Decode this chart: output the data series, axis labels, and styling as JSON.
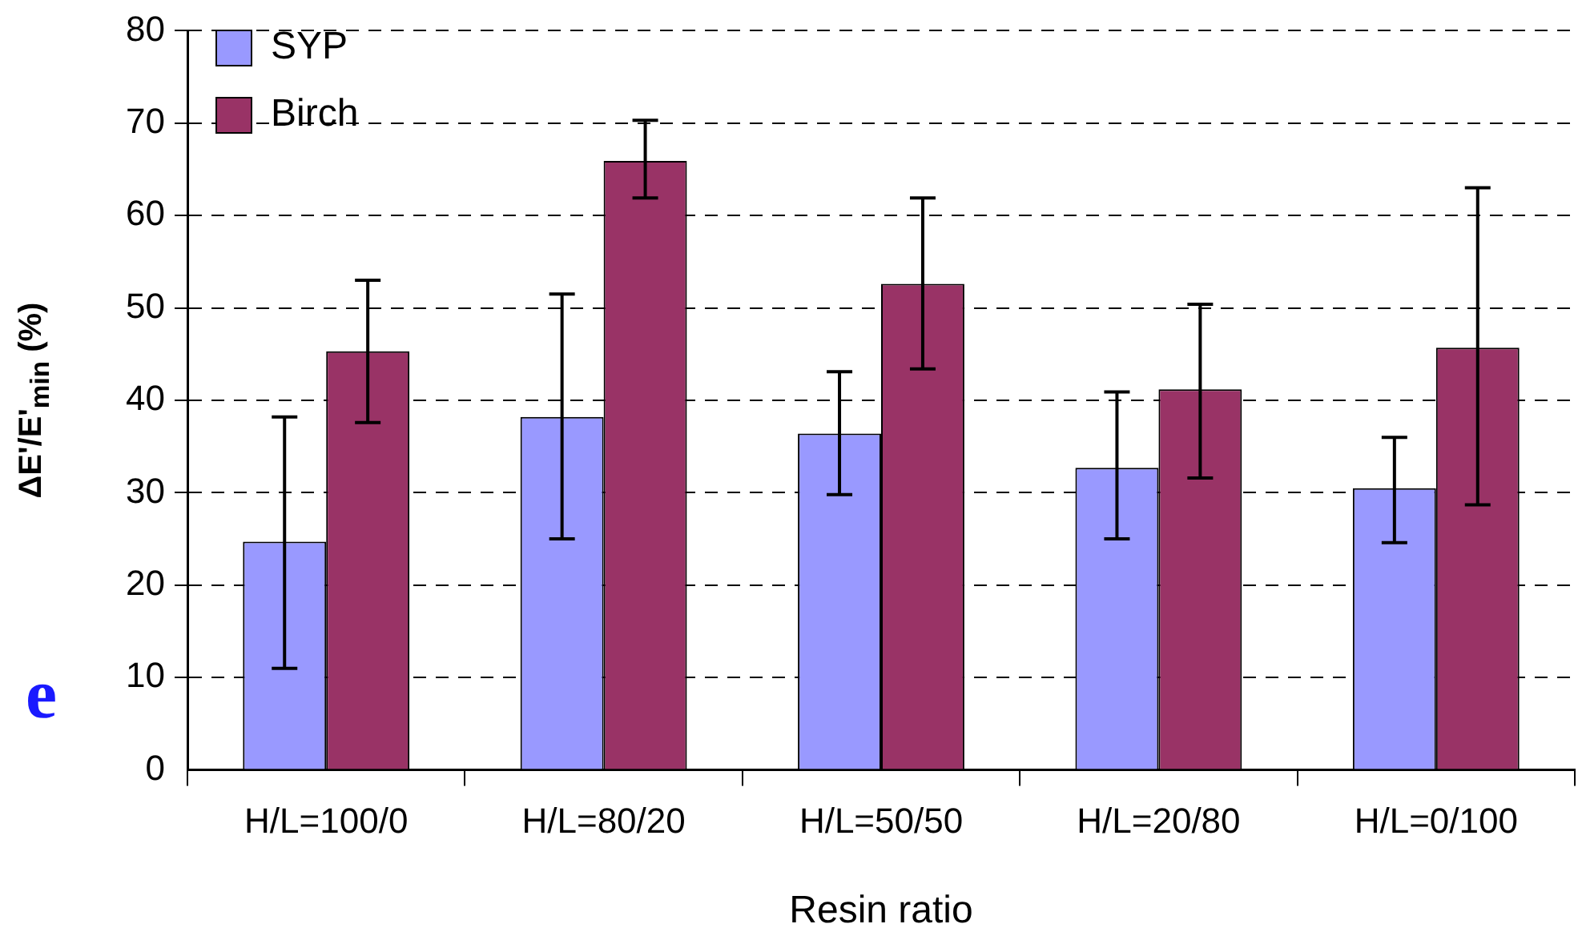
{
  "chart_data": {
    "type": "bar",
    "xlabel": "Resin ratio",
    "ylabel": "ΔE'/E'$_{min}$ (%)",
    "categories": [
      "H/L=100/0",
      "H/L=80/20",
      "H/L=50/50",
      "H/L=20/80",
      "H/L=0/100"
    ],
    "series": [
      {
        "name": "SYP",
        "color": "#9999ff",
        "values": [
          24.7,
          38.2,
          36.4,
          32.7,
          30.5
        ],
        "errors": [
          [
            11.0,
            38.2
          ],
          [
            25.0,
            51.5
          ],
          [
            29.8,
            43.1
          ],
          [
            25.0,
            40.9
          ],
          [
            24.6,
            36.0
          ]
        ]
      },
      {
        "name": "Birch",
        "color": "#993366",
        "values": [
          45.3,
          65.9,
          52.6,
          41.2,
          45.7
        ],
        "errors": [
          [
            37.6,
            53.0
          ],
          [
            61.9,
            70.3
          ],
          [
            43.4,
            61.9
          ],
          [
            31.6,
            50.4
          ],
          [
            28.7,
            63.0
          ]
        ]
      }
    ],
    "ylim": [
      0,
      80
    ],
    "yticks": [
      0,
      10,
      20,
      30,
      40,
      50,
      60,
      70,
      80
    ],
    "grid": "y",
    "legend": "top left",
    "annotations": [
      "e"
    ]
  }
}
